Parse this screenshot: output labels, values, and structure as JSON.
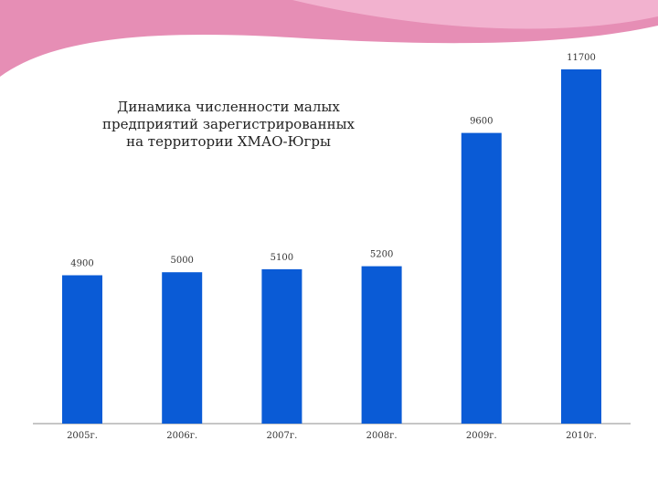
{
  "colors": {
    "bar": "#0a5bd6",
    "axis": "#8c8c8c",
    "label": "#333333",
    "banner_pink": "#e27aa8",
    "banner_light": "#f3b6d2"
  },
  "chart_data": {
    "type": "bar",
    "title": "Динамика численности малых\nпредприятий зарегистрированных\nна территории ХМАО-Югры",
    "xlabel": "",
    "ylabel": "",
    "categories": [
      "2005г.",
      "2006г.",
      "2007г.",
      "2008г.",
      "2009г.",
      "2010г."
    ],
    "values": [
      4900,
      5000,
      5100,
      5200,
      9600,
      11700
    ],
    "value_labels": [
      "4900",
      "5000",
      "5100",
      "5200",
      "9600",
      "11700"
    ],
    "ylim": [
      0,
      11700
    ],
    "grid": false,
    "legend": "none"
  }
}
